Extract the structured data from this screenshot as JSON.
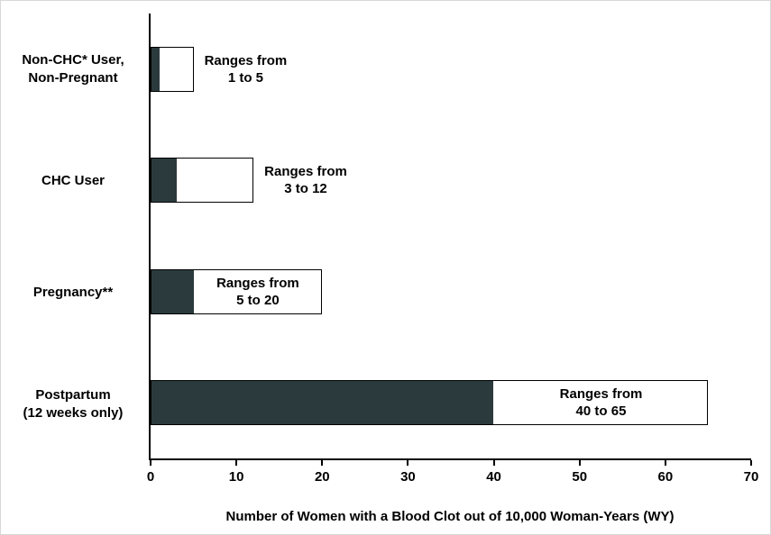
{
  "chart_data": {
    "type": "bar",
    "orientation": "horizontal",
    "categories": [
      "Non-CHC* User,\nNon-Pregnant",
      "CHC User",
      "Pregnancy**",
      "Postpartum\n(12 weeks only)"
    ],
    "series": [
      {
        "name": "range minimum (filled segment)",
        "values": [
          1,
          3,
          5,
          40
        ],
        "color": "#2b3a3d"
      },
      {
        "name": "range maximum (open segment)",
        "values": [
          5,
          12,
          20,
          65
        ],
        "color": "#ffffff"
      }
    ],
    "bar_labels": [
      "Ranges from\n1 to 5",
      "Ranges from\n3 to 12",
      "Ranges from\n5 to 20",
      "Ranges from\n40 to 65"
    ],
    "label_positions": [
      "right",
      "right",
      "inside",
      "inside"
    ],
    "xlabel": "Number of Women with a Blood Clot out of 10,000 Woman-Years (WY)",
    "xlim": [
      0,
      70
    ],
    "xticks": [
      0,
      10,
      20,
      30,
      40,
      50,
      60,
      70
    ],
    "grid": false,
    "legend": "none",
    "axis_color": "#000000",
    "bar_border_color": "#000000"
  }
}
